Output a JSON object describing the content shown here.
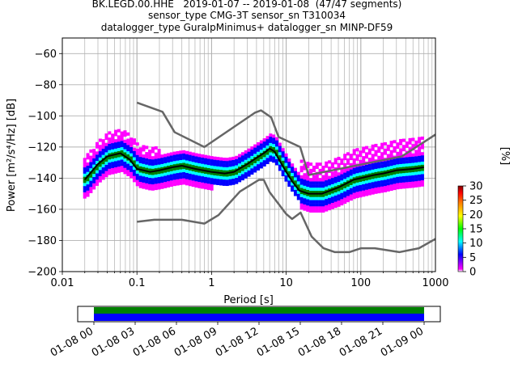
{
  "header": {
    "line1": "BK.LEGD.00.HHE   2019-01-07 -- 2019-01-08  (47/47 segments)",
    "line2": "sensor_type CMG-3T sensor_sn T310034",
    "line3": "datalogger_type GuralpMinimus+ datalogger_sn MINP-DF59"
  },
  "chart_data": [
    {
      "type": "heatmap",
      "xlabel": "Period [s]",
      "ylabel": "Power [m²/s⁴/Hz] [dB]",
      "x_scale": "log",
      "xlim": [
        0.01,
        1000
      ],
      "ylim": [
        -200,
        -50
      ],
      "x_ticks": [
        "0.01",
        "0.1",
        "1",
        "10",
        "100",
        "1000"
      ],
      "y_ticks": [
        "−60",
        "−80",
        "−100",
        "−120",
        "−140",
        "−160",
        "−180",
        "−200"
      ],
      "grid": true,
      "colorbar": {
        "label": "[%]",
        "range": [
          0,
          30
        ],
        "ticks": [
          "0",
          "5",
          "10",
          "15",
          "20",
          "25",
          "30"
        ],
        "colors": [
          "#ffffff",
          "#ff00ff",
          "#0000ff",
          "#00ffff",
          "#00ff00",
          "#ffff00",
          "#ff8000",
          "#ff0000",
          "#800000"
        ]
      },
      "series": [
        {
          "role": "median",
          "color": "#000000",
          "x": [
            0.02,
            0.03,
            0.04,
            0.06,
            0.08,
            0.1,
            0.15,
            0.2,
            0.3,
            0.4,
            0.6,
            1,
            1.5,
            2,
            3,
            4,
            5,
            6,
            7,
            8,
            10,
            12,
            15,
            20,
            30,
            50,
            80,
            100,
            150,
            200,
            300,
            500,
            700
          ],
          "y": [
            -141,
            -131,
            -126,
            -124,
            -128,
            -134,
            -136,
            -135,
            -133,
            -132,
            -134,
            -136,
            -137,
            -136,
            -131,
            -127,
            -124,
            -121,
            -123,
            -128,
            -136,
            -142,
            -148,
            -150,
            -150,
            -146,
            -141,
            -140,
            -138,
            -137,
            -135,
            -134,
            -133
          ]
        },
        {
          "role": "noise-model-high",
          "color": "#666666",
          "x": [
            0.1,
            0.22,
            0.32,
            0.8,
            3.8,
            4.6,
            6.3,
            7.9,
            15.4,
            20,
            354.8,
            1000
          ],
          "y": [
            -91.5,
            -97.4,
            -110.5,
            -120,
            -98,
            -96.5,
            -101,
            -113.5,
            -120,
            -138,
            -126,
            -112
          ]
        },
        {
          "role": "noise-model-low",
          "color": "#666666",
          "x": [
            0.1,
            0.17,
            0.4,
            0.8,
            1.24,
            2.4,
            4.3,
            5,
            6,
            10,
            12,
            15.6,
            21.9,
            31.6,
            45,
            70,
            101,
            154,
            328,
            600,
            1000
          ],
          "y": [
            -168,
            -166.7,
            -166.7,
            -169.2,
            -163.7,
            -148.6,
            -141.1,
            -141.1,
            -149,
            -163,
            -166.2,
            -162.1,
            -177.5,
            -185,
            -187.5,
            -187.5,
            -185,
            -185,
            -187.5,
            -185,
            -179
          ]
        }
      ]
    },
    {
      "type": "bar",
      "xlim": [
        "01-08 00",
        "01-09 00"
      ],
      "x_ticks": [
        "01-08 00",
        "01-08 03",
        "01-08 06",
        "01-08 09",
        "01-08 12",
        "01-08 15",
        "01-08 18",
        "01-08 21",
        "01-09 00"
      ],
      "bands": [
        {
          "row": "top",
          "color": "#008000",
          "from": "01-08 00",
          "to": "01-09 00"
        },
        {
          "row": "bottom",
          "color": "#0000ff",
          "from": "01-08 00",
          "to": "01-09 00"
        }
      ]
    }
  ]
}
